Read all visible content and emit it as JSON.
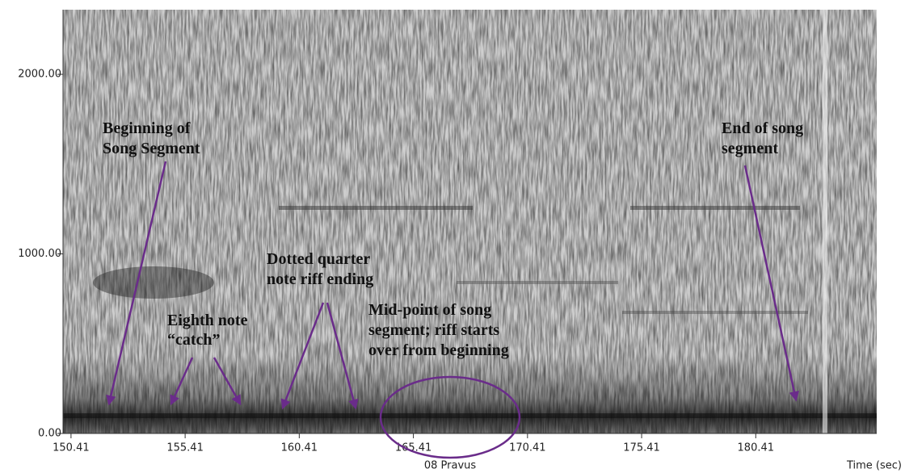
{
  "chart_data": {
    "type": "spectrogram",
    "title": "08 Pravus",
    "xlabel": "Time (sec)",
    "xlim": [
      150.06,
      185.71
    ],
    "ylim": [
      0,
      2360
    ],
    "xticks": [
      150.41,
      155.41,
      160.41,
      165.41,
      170.41,
      175.41,
      180.41
    ],
    "yticks": [
      {
        "value": 0,
        "label": "0.00"
      },
      {
        "value": 1000,
        "label": "1000.00"
      },
      {
        "value": 2000,
        "label": "2000.00"
      }
    ],
    "annotations": [
      {
        "lines": [
          "Beginning of",
          "Song Segment"
        ]
      },
      {
        "lines": [
          "End of song",
          "segment"
        ]
      },
      {
        "lines": [
          "Dotted quarter",
          "note riff ending"
        ]
      },
      {
        "lines": [
          "Mid-point of song",
          "segment; riff starts",
          "over from beginning"
        ]
      },
      {
        "lines": [
          "Eighth note",
          "“catch”"
        ]
      }
    ]
  }
}
